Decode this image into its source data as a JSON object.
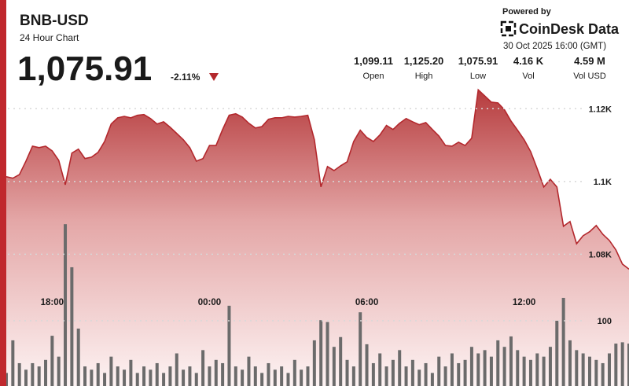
{
  "chart_data": {
    "type": "line",
    "title": "BNB-USD",
    "subtitle": "24 Hour Chart",
    "price": "1,075.91",
    "change": "-2.11%",
    "powered_by": "Powered by",
    "brand": "CoinDesk Data",
    "timestamp": "30 Oct 2025 16:00 (GMT)",
    "stats": [
      {
        "value": "1,099.11",
        "label": "Open"
      },
      {
        "value": "1,125.20",
        "label": "High"
      },
      {
        "value": "1,075.91",
        "label": "Low"
      },
      {
        "value": "4.16 K",
        "label": "Vol"
      },
      {
        "value": "4.59 M",
        "label": "Vol USD"
      }
    ],
    "categories": [
      null,
      null,
      null,
      null,
      null,
      null,
      null,
      "18:00",
      null,
      null,
      null,
      null,
      null,
      null,
      null,
      null,
      null,
      null,
      null,
      null,
      null,
      null,
      null,
      null,
      null,
      null,
      null,
      null,
      null,
      null,
      null,
      "00:00",
      null,
      null,
      null,
      null,
      null,
      null,
      null,
      null,
      null,
      null,
      null,
      null,
      null,
      null,
      null,
      null,
      null,
      null,
      null,
      null,
      null,
      null,
      null,
      "06:00",
      null,
      null,
      null,
      null,
      null,
      null,
      null,
      null,
      null,
      null,
      null,
      null,
      null,
      null,
      null,
      null,
      null,
      null,
      null,
      null,
      null,
      null,
      null,
      "12:00",
      null,
      null,
      null,
      null,
      null,
      null,
      null,
      null,
      null,
      null,
      null,
      null,
      null,
      null,
      null,
      null
    ],
    "series": [
      {
        "color": "#b3282d",
        "values": [
          1101.3,
          1100.9,
          1101.9,
          1105.6,
          1109.7,
          1109.3,
          1109.7,
          1108.4,
          1105.8,
          1099.1,
          1107.8,
          1108.9,
          1106.3,
          1106.7,
          1108.0,
          1111.0,
          1115.8,
          1117.5,
          1117.9,
          1117.5,
          1118.2,
          1118.4,
          1117.3,
          1115.8,
          1116.4,
          1114.9,
          1113.2,
          1111.5,
          1109.3,
          1105.6,
          1106.3,
          1109.9,
          1109.9,
          1114.3,
          1118.2,
          1118.6,
          1117.7,
          1116.0,
          1114.7,
          1115.1,
          1117.1,
          1117.5,
          1117.5,
          1117.9,
          1117.7,
          1117.9,
          1118.2,
          1111.5,
          1098.5,
          1104.1,
          1103.0,
          1104.3,
          1105.4,
          1111.0,
          1114.1,
          1112.1,
          1111.0,
          1112.8,
          1115.4,
          1114.3,
          1116.0,
          1117.3,
          1116.4,
          1115.6,
          1116.2,
          1114.3,
          1112.5,
          1109.9,
          1109.7,
          1110.8,
          1109.9,
          1111.9,
          1125.2,
          1123.5,
          1121.8,
          1121.6,
          1119.7,
          1116.6,
          1114.1,
          1111.5,
          1108.2,
          1103.5,
          1098.5,
          1100.6,
          1098.5,
          1087.7,
          1089.0,
          1082.9,
          1085.1,
          1086.2,
          1087.9,
          1085.5,
          1083.8,
          1081.2,
          1077.3,
          1075.9
        ]
      },
      {
        "color": "#6b6b6b",
        "type": "bar",
        "axis": "y2",
        "values": [
          20,
          70,
          35,
          25,
          35,
          30,
          40,
          77,
          45,
          248,
          182,
          88,
          30,
          25,
          35,
          20,
          45,
          30,
          25,
          40,
          20,
          30,
          25,
          35,
          20,
          30,
          50,
          25,
          30,
          20,
          55,
          30,
          40,
          35,
          123,
          30,
          25,
          45,
          30,
          20,
          35,
          25,
          30,
          20,
          40,
          25,
          30,
          70,
          101,
          98,
          60,
          75,
          40,
          30,
          113,
          64,
          35,
          50,
          30,
          40,
          55,
          30,
          40,
          25,
          35,
          20,
          45,
          30,
          50,
          35,
          40,
          60,
          50,
          55,
          45,
          70,
          60,
          76,
          55,
          45,
          40,
          50,
          45,
          60,
          100,
          135,
          70,
          55,
          50,
          45,
          40,
          35,
          50,
          65,
          67,
          65
        ]
      }
    ],
    "ylim": [
      1060,
      1130
    ],
    "yticks": [
      {
        "value": 1080,
        "label": "1.08K"
      },
      {
        "value": 1100,
        "label": "1.1K"
      },
      {
        "value": 1120,
        "label": "1.12K"
      }
    ],
    "y2lim": [
      0,
      250
    ],
    "y2ticks": [
      100
    ],
    "grid": true
  }
}
